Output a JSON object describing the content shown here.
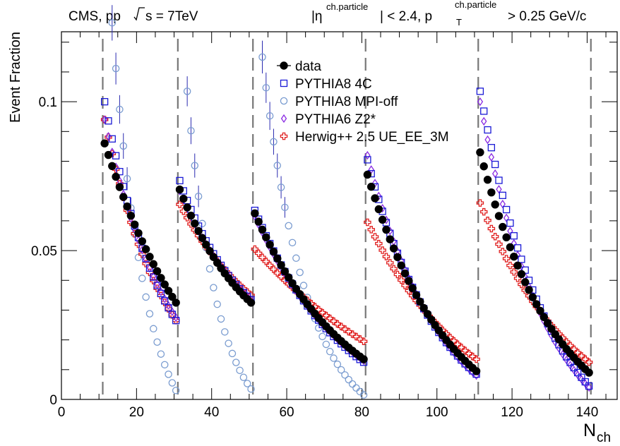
{
  "chart_data": {
    "type": "scatter",
    "title_left": "CMS, pp",
    "title_left_energy": "s = 7TeV",
    "title_right_parts": {
      "eta": "|η",
      "eta_sup": "ch.particle",
      "eta_cut": "| < 2.4, p",
      "pt_sub": "T",
      "pt_sup": "ch.particle",
      "pt_cut": "> 0.25 GeV/c"
    },
    "xlabel_main": "N",
    "xlabel_sub": "ch",
    "ylabel": "Event Fraction",
    "xlim": [
      0,
      148
    ],
    "ylim": [
      0,
      0.1235
    ],
    "x_ticks": [
      0,
      20,
      40,
      60,
      80,
      100,
      120,
      140
    ],
    "x_tick_labels": [
      "0",
      "20",
      "40",
      "60",
      "80",
      "100",
      "120",
      "140"
    ],
    "y_ticks": [
      0,
      0.05,
      0.1
    ],
    "y_tick_labels": [
      "0",
      "0.05",
      "0.1"
    ],
    "separators": [
      11,
      31,
      51,
      81,
      111,
      141
    ],
    "legend": {
      "position": "top-center",
      "entries": [
        {
          "label": "data",
          "series": "data"
        },
        {
          "label": "PYTHIA8 4C",
          "series": "p4c"
        },
        {
          "label": "PYTHIA8 MPI-off",
          "series": "mpioff"
        },
        {
          "label": "PYTHIA6 Z2*",
          "series": "z2"
        },
        {
          "label": "Herwig++ 2.5 UE_EE_3M",
          "series": "herwig"
        }
      ]
    },
    "series": [
      {
        "id": "data",
        "name": "data",
        "marker": "filled-circle",
        "color": "#000000",
        "segments": [
          {
            "x0": 11.5,
            "x1": 30.5,
            "y0": 0.086,
            "y1": 0.0325,
            "k": 0.72
          },
          {
            "x0": 31.5,
            "x1": 50.5,
            "y0": 0.0705,
            "y1": 0.0325,
            "k": 1.0
          },
          {
            "x0": 51.5,
            "x1": 80.5,
            "y0": 0.0625,
            "y1": 0.0135,
            "k": 1.15
          },
          {
            "x0": 81.5,
            "x1": 110.5,
            "y0": 0.0755,
            "y1": 0.0095,
            "k": 1.35
          },
          {
            "x0": 111.5,
            "x1": 140.5,
            "y0": 0.083,
            "y1": 0.009,
            "k": 1.45
          }
        ]
      },
      {
        "id": "p4c",
        "name": "PYTHIA8 4C",
        "marker": "open-square",
        "color": "#1a1ad6",
        "segments": [
          {
            "x0": 11.5,
            "x1": 30.5,
            "y0": 0.1,
            "y1": 0.0265,
            "k": 1.2
          },
          {
            "x0": 31.5,
            "x1": 50.5,
            "y0": 0.0735,
            "y1": 0.0335,
            "k": 1.15
          },
          {
            "x0": 51.5,
            "x1": 80.5,
            "y0": 0.0635,
            "y1": 0.0125,
            "k": 1.2
          },
          {
            "x0": 81.5,
            "x1": 110.5,
            "y0": 0.0805,
            "y1": 0.0085,
            "k": 1.5
          },
          {
            "x0": 111.5,
            "x1": 140.5,
            "y0": 0.1035,
            "y1": 0.0045,
            "k": 1.6
          }
        ]
      },
      {
        "id": "mpioff",
        "name": "PYTHIA8 MPI-off",
        "marker": "open-circle",
        "color": "#7a9cd0",
        "segments": [
          {
            "x0": 13.5,
            "x1": 30.5,
            "y0": 0.1265,
            "y1": 0.003,
            "k": 1.9
          },
          {
            "x0": 33.5,
            "x1": 50.5,
            "y0": 0.1035,
            "y1": 0.0035,
            "k": 2.1
          },
          {
            "x0": 53.5,
            "x1": 80.5,
            "y0": 0.115,
            "y1": 0.0015,
            "k": 2.3
          }
        ]
      },
      {
        "id": "z2",
        "name": "PYTHIA6 Z2*",
        "marker": "open-diamond",
        "color": "#8a2be2",
        "segments": [
          {
            "x0": 11.5,
            "x1": 30.5,
            "y0": 0.094,
            "y1": 0.0275,
            "k": 1.1
          },
          {
            "x0": 31.5,
            "x1": 50.5,
            "y0": 0.07,
            "y1": 0.0335,
            "k": 1.0
          },
          {
            "x0": 51.5,
            "x1": 80.5,
            "y0": 0.0615,
            "y1": 0.013,
            "k": 1.15
          },
          {
            "x0": 81.5,
            "x1": 110.5,
            "y0": 0.082,
            "y1": 0.008,
            "k": 1.5
          },
          {
            "x0": 111.5,
            "x1": 140.5,
            "y0": 0.1,
            "y1": 0.004,
            "k": 1.65
          }
        ]
      },
      {
        "id": "herwig",
        "name": "Herwig++ 2.5 UE_EE_3M",
        "marker": "open-cross",
        "color": "#e02020",
        "segments": [
          {
            "x0": 11.5,
            "x1": 30.5,
            "y0": 0.094,
            "y1": 0.0265,
            "k": 1.2
          },
          {
            "x0": 31.5,
            "x1": 50.5,
            "y0": 0.0655,
            "y1": 0.035,
            "k": 0.8
          },
          {
            "x0": 51.5,
            "x1": 80.5,
            "y0": 0.0505,
            "y1": 0.0195,
            "k": 0.6
          },
          {
            "x0": 81.5,
            "x1": 110.5,
            "y0": 0.0595,
            "y1": 0.0135,
            "k": 1.0
          },
          {
            "x0": 111.5,
            "x1": 140.5,
            "y0": 0.066,
            "y1": 0.0125,
            "k": 1.1
          }
        ]
      }
    ]
  }
}
